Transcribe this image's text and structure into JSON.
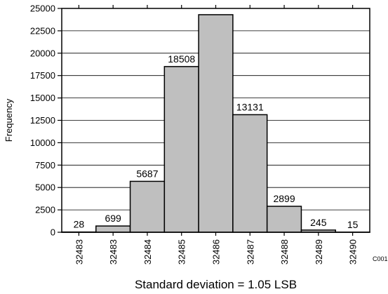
{
  "chart_data": {
    "type": "bar",
    "title": "",
    "xlabel": "Standard deviation = 1.05 LSB",
    "ylabel": "Frequency",
    "ylim": [
      0,
      25000
    ],
    "yticks": [
      0,
      2500,
      5000,
      7500,
      10000,
      12500,
      15000,
      17500,
      20000,
      22500,
      25000
    ],
    "ytick_labels": [
      "0",
      "2500",
      "5000",
      "7500",
      "10000",
      "12500",
      "15000",
      "17500",
      "20000",
      "22500",
      "25000"
    ],
    "categories": [
      "32483",
      "32483",
      "32484",
      "32485",
      "32486",
      "32487",
      "32488",
      "32489",
      "32490"
    ],
    "values": [
      28,
      699,
      5687,
      18508,
      24300,
      13131,
      2899,
      245,
      15
    ],
    "data_labels": [
      "28",
      "699",
      "5687",
      "18508",
      "",
      "13131",
      "2899",
      "245",
      "15"
    ],
    "grid": true,
    "bar_color": "#bfbfbf",
    "edge_color": "#000000"
  },
  "figure_code": "C001"
}
